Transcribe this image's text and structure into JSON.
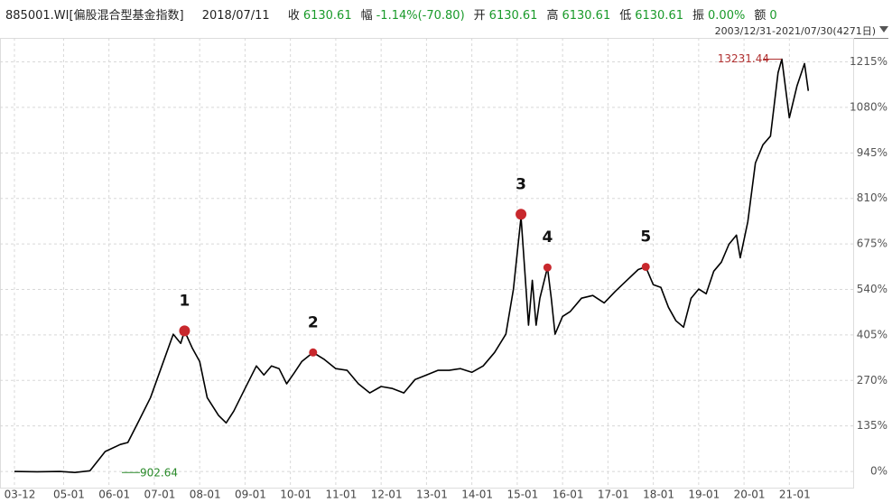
{
  "header": {
    "code": "885001.WI[偏股混合型基金指数]",
    "date": "2018/07/11",
    "fields": [
      {
        "label": "收",
        "value": "6130.61"
      },
      {
        "label": "幅",
        "value": "-1.14%(-70.80)"
      },
      {
        "label": "开",
        "value": "6130.61"
      },
      {
        "label": "高",
        "value": "6130.61"
      },
      {
        "label": "低",
        "value": "6130.61"
      },
      {
        "label": "振",
        "value": "0.00%"
      },
      {
        "label": "额",
        "value": "0"
      }
    ],
    "range": "2003/12/31-2021/07/30(4271日)"
  },
  "chart_data": {
    "type": "line",
    "series": [
      {
        "color": "#000000",
        "x": [
          0,
          6,
          12,
          16,
          20,
          24,
          28,
          30,
          33,
          36,
          39,
          42,
          44,
          45,
          47,
          49,
          51,
          54,
          56,
          58,
          61,
          64,
          66,
          68,
          70,
          72,
          74,
          76,
          79,
          82,
          85,
          88,
          91,
          94,
          97,
          100,
          103,
          106,
          109,
          112,
          115,
          118,
          121,
          124,
          127,
          130,
          132,
          134,
          135,
          136,
          137,
          138,
          139,
          141,
          142,
          143,
          145,
          147,
          150,
          153,
          156,
          159,
          162,
          165,
          167,
          169,
          171,
          173,
          175,
          177,
          179,
          181,
          183,
          185,
          187,
          189,
          191,
          192,
          194,
          196,
          198,
          200,
          202,
          203,
          205,
          207,
          209,
          210
        ],
        "values": [
          0,
          -1,
          0,
          -3,
          2,
          59,
          80,
          86,
          152,
          219,
          313,
          407,
          380,
          417,
          367,
          326,
          219,
          166,
          144,
          179,
          246,
          313,
          286,
          313,
          305,
          260,
          292,
          326,
          353,
          332,
          305,
          300,
          260,
          233,
          252,
          246,
          233,
          273,
          286,
          300,
          300,
          305,
          294,
          313,
          353,
          407,
          541,
          755,
          594,
          434,
          567,
          434,
          514,
          605,
          514,
          407,
          460,
          474,
          514,
          522,
          500,
          535,
          567,
          599,
          607,
          554,
          546,
          487,
          447,
          428,
          514,
          541,
          527,
          594,
          621,
          674,
          701,
          634,
          741,
          915,
          969,
          995,
          1183,
          1223,
          1049,
          1143,
          1210,
          1129
        ]
      }
    ],
    "xlim": [
      0,
      212
    ],
    "xticks": [
      {
        "value": 0,
        "label": "03-12"
      },
      {
        "value": 13,
        "label": "05-01"
      },
      {
        "value": 25,
        "label": "06-01"
      },
      {
        "value": 37,
        "label": "07-01"
      },
      {
        "value": 49,
        "label": "08-01"
      },
      {
        "value": 61,
        "label": "09-01"
      },
      {
        "value": 73,
        "label": "10-01"
      },
      {
        "value": 85,
        "label": "11-01"
      },
      {
        "value": 97,
        "label": "12-01"
      },
      {
        "value": 109,
        "label": "13-01"
      },
      {
        "value": 121,
        "label": "14-01"
      },
      {
        "value": 133,
        "label": "15-01"
      },
      {
        "value": 145,
        "label": "16-01"
      },
      {
        "value": 157,
        "label": "17-01"
      },
      {
        "value": 169,
        "label": "18-01"
      },
      {
        "value": 181,
        "label": "19-01"
      },
      {
        "value": 193,
        "label": "20-01"
      },
      {
        "value": 205,
        "label": "21-01"
      }
    ],
    "ylim": [
      -40,
      1270
    ],
    "yticks": [
      {
        "value": 0,
        "label": "0%"
      },
      {
        "value": 135,
        "label": "135%"
      },
      {
        "value": 270,
        "label": "270%"
      },
      {
        "value": 405,
        "label": "405%"
      },
      {
        "value": 540,
        "label": "540%"
      },
      {
        "value": 675,
        "label": "675%"
      },
      {
        "value": 810,
        "label": "810%"
      },
      {
        "value": 945,
        "label": "945%"
      },
      {
        "value": 1080,
        "label": "1080%"
      },
      {
        "value": 1215,
        "label": "1215%"
      }
    ],
    "grid": true,
    "annotations": [
      {
        "label": "1",
        "x": 45,
        "y": 417
      },
      {
        "label": "2",
        "x": 79,
        "y": 353
      },
      {
        "label": "3",
        "x": 134,
        "y": 763
      },
      {
        "label": "4",
        "x": 141,
        "y": 605
      },
      {
        "label": "5",
        "x": 167,
        "y": 607
      }
    ],
    "annotation_color": "#c8282d",
    "max_label": {
      "text": "13231.44",
      "x": 203,
      "y": 1223
    },
    "min_label": {
      "text": "902.64",
      "x": 16,
      "y": -3
    }
  }
}
